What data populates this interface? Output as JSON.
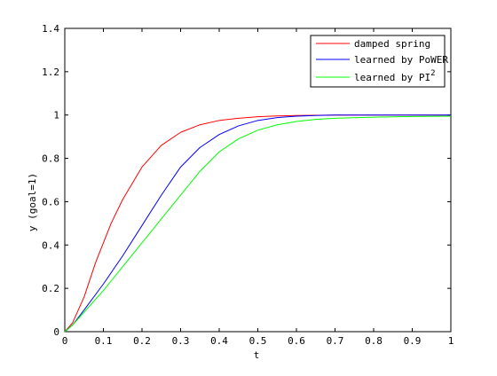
{
  "chart_data": {
    "type": "line",
    "title": "",
    "xlabel": "t",
    "ylabel": "y (goal=1)",
    "xlim": [
      0,
      1
    ],
    "ylim": [
      0,
      1.4
    ],
    "xticks": [
      0,
      0.1,
      0.2,
      0.3,
      0.4,
      0.5,
      0.6,
      0.7,
      0.8,
      0.9,
      1
    ],
    "xtick_labels": [
      "0",
      "0.1",
      "0.2",
      "0.3",
      "0.4",
      "0.5",
      "0.6",
      "0.7",
      "0.8",
      "0.9",
      "1"
    ],
    "yticks": [
      0,
      0.2,
      0.4,
      0.6,
      0.8,
      1,
      1.2,
      1.4
    ],
    "ytick_labels": [
      "0",
      "0.2",
      "0.4",
      "0.6",
      "0.8",
      "1",
      "1.2",
      "1.4"
    ],
    "grid": false,
    "legend_position": "top-right",
    "series": [
      {
        "name": "damped spring",
        "color": "#ff0000",
        "x": [
          0,
          0.02,
          0.05,
          0.08,
          0.1,
          0.12,
          0.15,
          0.18,
          0.2,
          0.25,
          0.3,
          0.35,
          0.4,
          0.45,
          0.5,
          0.55,
          0.6,
          0.7,
          0.8,
          0.9,
          1.0
        ],
        "y": [
          0,
          0.04,
          0.16,
          0.32,
          0.41,
          0.5,
          0.61,
          0.7,
          0.76,
          0.86,
          0.92,
          0.955,
          0.975,
          0.985,
          0.992,
          0.996,
          0.998,
          1.0,
          1.0,
          1.0,
          1.0
        ]
      },
      {
        "name": "learned by PoWER",
        "color": "#0000ff",
        "x": [
          0,
          0.02,
          0.05,
          0.1,
          0.15,
          0.2,
          0.25,
          0.3,
          0.35,
          0.4,
          0.45,
          0.5,
          0.55,
          0.6,
          0.65,
          0.7,
          0.8,
          0.9,
          1.0
        ],
        "y": [
          0,
          0.03,
          0.1,
          0.22,
          0.35,
          0.49,
          0.63,
          0.76,
          0.85,
          0.91,
          0.95,
          0.975,
          0.988,
          0.995,
          0.998,
          1.0,
          1.0,
          1.0,
          1.0
        ]
      },
      {
        "name": "learned by PI",
        "name_superscript": "2",
        "color": "#00ff00",
        "x": [
          0,
          0.02,
          0.05,
          0.1,
          0.15,
          0.2,
          0.25,
          0.3,
          0.35,
          0.4,
          0.45,
          0.5,
          0.55,
          0.6,
          0.65,
          0.7,
          0.8,
          0.9,
          1.0
        ],
        "y": [
          0,
          0.03,
          0.09,
          0.19,
          0.3,
          0.41,
          0.52,
          0.63,
          0.74,
          0.83,
          0.89,
          0.93,
          0.955,
          0.97,
          0.98,
          0.985,
          0.99,
          0.993,
          0.995
        ]
      }
    ]
  }
}
